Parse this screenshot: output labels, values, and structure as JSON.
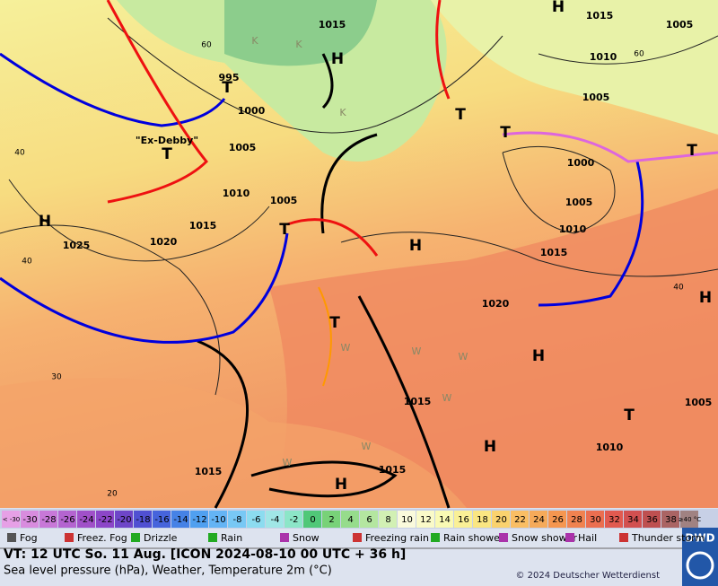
{
  "map": {
    "storm_name": "\"Ex-Debby\"",
    "pressure_labels": [
      "1015",
      "1015",
      "1005",
      "1010",
      "995",
      "1000",
      "1005",
      "1005",
      "1010",
      "1005",
      "1000",
      "1005",
      "1010",
      "1015",
      "1020",
      "1025",
      "1015",
      "1020",
      "1015",
      "1005",
      "1010",
      "1015",
      "1015"
    ],
    "temperature_labels": [
      "60",
      "60",
      "40",
      "40",
      "30",
      "20",
      "40"
    ],
    "pressure_centers": [
      "H",
      "H",
      "H",
      "H",
      "H",
      "H",
      "H",
      "H",
      "T",
      "T",
      "T",
      "T",
      "T",
      "T",
      "T",
      "T"
    ],
    "weather_marks": [
      "W",
      "W",
      "W",
      "W",
      "W",
      "W",
      "K",
      "K",
      "K"
    ]
  },
  "color_scale": {
    "cells": [
      {
        "label": "< -30",
        "color": "#e6a0e6"
      },
      {
        "label": "-30",
        "color": "#d88cde"
      },
      {
        "label": "-28",
        "color": "#c878d8"
      },
      {
        "label": "-26",
        "color": "#b464d0"
      },
      {
        "label": "-24",
        "color": "#a050c8"
      },
      {
        "label": "-22",
        "color": "#8c46c8"
      },
      {
        "label": "-20",
        "color": "#6e46c8"
      },
      {
        "label": "-18",
        "color": "#5050d2"
      },
      {
        "label": "-16",
        "color": "#4664dc"
      },
      {
        "label": "-14",
        "color": "#4682e6"
      },
      {
        "label": "-12",
        "color": "#50a0f0"
      },
      {
        "label": "-10",
        "color": "#64b4f5"
      },
      {
        "label": "-8",
        "color": "#78c8f5"
      },
      {
        "label": "-6",
        "color": "#8cdcf0"
      },
      {
        "label": "-4",
        "color": "#a0e6e6"
      },
      {
        "label": "-2",
        "color": "#8ce6c8"
      },
      {
        "label": "0",
        "color": "#50c878"
      },
      {
        "label": "2",
        "color": "#78d278"
      },
      {
        "label": "4",
        "color": "#96dc8c"
      },
      {
        "label": "6",
        "color": "#b4e6a0"
      },
      {
        "label": "8",
        "color": "#d2f0b4"
      },
      {
        "label": "10",
        "color": "#fafadc"
      },
      {
        "label": "12",
        "color": "#fafac8"
      },
      {
        "label": "14",
        "color": "#fafab4"
      },
      {
        "label": "16",
        "color": "#faf096"
      },
      {
        "label": "18",
        "color": "#fae682"
      },
      {
        "label": "20",
        "color": "#fad26e"
      },
      {
        "label": "22",
        "color": "#fabe64"
      },
      {
        "label": "24",
        "color": "#f5aa5a"
      },
      {
        "label": "26",
        "color": "#f59650"
      },
      {
        "label": "28",
        "color": "#f08250"
      },
      {
        "label": "30",
        "color": "#eb6e50"
      },
      {
        "label": "32",
        "color": "#e15a50"
      },
      {
        "label": "34",
        "color": "#d25050"
      },
      {
        "label": "36",
        "color": "#be5050"
      },
      {
        "label": "38",
        "color": "#aa6464"
      },
      {
        "label": "≥40 °C",
        "color": "#a08282"
      }
    ]
  },
  "legend": [
    "Fog",
    "Freez. Fog",
    "Drizzle",
    "Rain",
    "Snow",
    "Freezing rain",
    "Rain shower",
    "Snow shower",
    "Hail",
    "Thunder storm"
  ],
  "footer": {
    "valid_time": "VT: 12 UTC So.  11 Aug. [ICON 2024-08-10  00 UTC + 36 h]",
    "description": "Sea level pressure (hPa), Weather, Temperature 2m (°C)",
    "copyright": "© 2024 Deutscher Wetterdienst",
    "logo": "DWD"
  }
}
